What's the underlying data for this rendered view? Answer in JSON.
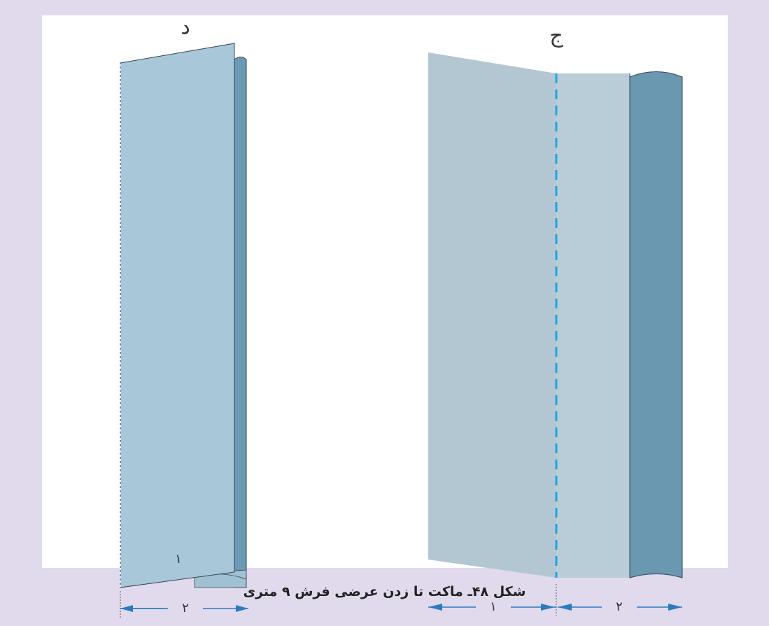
{
  "panels": [
    {
      "label": "د",
      "fold_label": "۱",
      "width_label": "۲"
    },
    {
      "label": "ج",
      "width_labels": [
        "۱",
        "۲"
      ]
    }
  ],
  "caption": "شکل ۴۸ـ ماکت تا زدن عرضی فرش ۹ متری"
}
